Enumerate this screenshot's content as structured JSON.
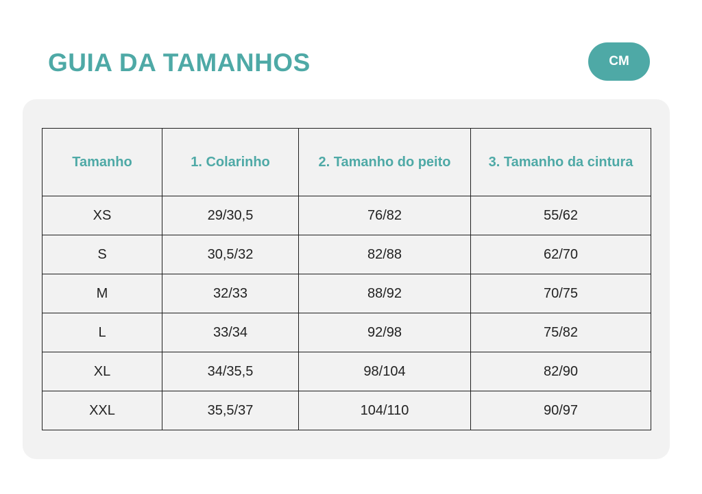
{
  "page": {
    "title": "GUIA DA TAMANHOS",
    "unit_badge": "CM"
  },
  "colors": {
    "accent": "#4ea9a6",
    "panel_background": "#f2f2f2",
    "border": "#1f1f1f",
    "text": "#222222"
  },
  "table": {
    "headers": [
      "Tamanho",
      "1.  Colarinho",
      "2. Tamanho do peito",
      "3. Tamanho da cintura"
    ],
    "rows": [
      [
        "XS",
        "29/30,5",
        "76/82",
        "55/62"
      ],
      [
        "S",
        "30,5/32",
        "82/88",
        "62/70"
      ],
      [
        "M",
        "32/33",
        "88/92",
        "70/75"
      ],
      [
        "L",
        "33/34",
        "92/98",
        "75/82"
      ],
      [
        "XL",
        "34/35,5",
        "98/104",
        "82/90"
      ],
      [
        "XXL",
        "35,5/37",
        "104/110",
        "90/97"
      ]
    ]
  }
}
